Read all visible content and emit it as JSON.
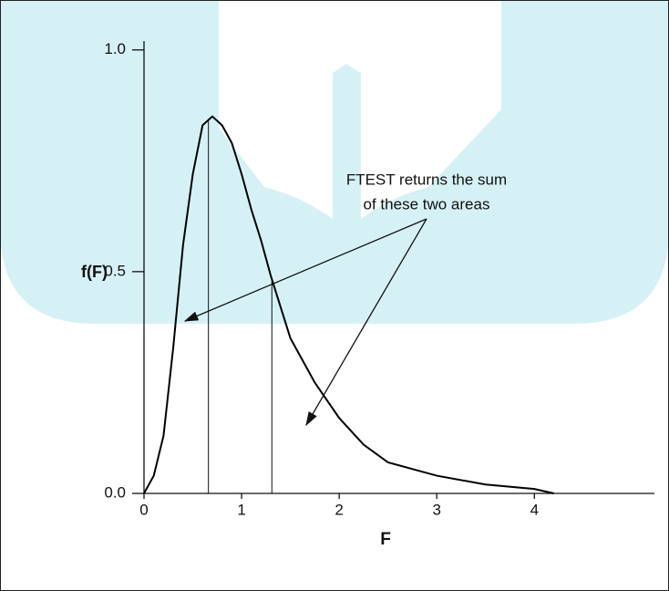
{
  "chart_data": {
    "type": "line",
    "x": [
      0,
      0.1,
      0.2,
      0.3,
      0.4,
      0.5,
      0.6,
      0.7,
      0.8,
      0.9,
      1.0,
      1.1,
      1.2,
      1.3,
      1.5,
      1.75,
      2.0,
      2.25,
      2.5,
      3.0,
      3.5,
      4.0,
      4.2
    ],
    "values": [
      0,
      0.04,
      0.13,
      0.33,
      0.56,
      0.72,
      0.83,
      0.85,
      0.83,
      0.79,
      0.72,
      0.64,
      0.57,
      0.49,
      0.35,
      0.25,
      0.17,
      0.11,
      0.07,
      0.04,
      0.02,
      0.01,
      0
    ],
    "color": "#000000",
    "xlim": [
      0,
      5.23
    ],
    "ylim": [
      0,
      1.02
    ],
    "xticks": [
      0,
      1,
      2,
      3,
      4
    ],
    "yticks": [
      {
        "value": 0,
        "label": "0.0"
      },
      {
        "value": 0.5,
        "label": "0.5"
      },
      {
        "value": 1,
        "label": "1.0"
      }
    ],
    "xlabel": "F",
    "ylabel": "f(F)",
    "vlines": [
      0.66,
      1.31
    ],
    "annotation": [
      "FTEST returns the sum",
      "of these two areas"
    ]
  }
}
